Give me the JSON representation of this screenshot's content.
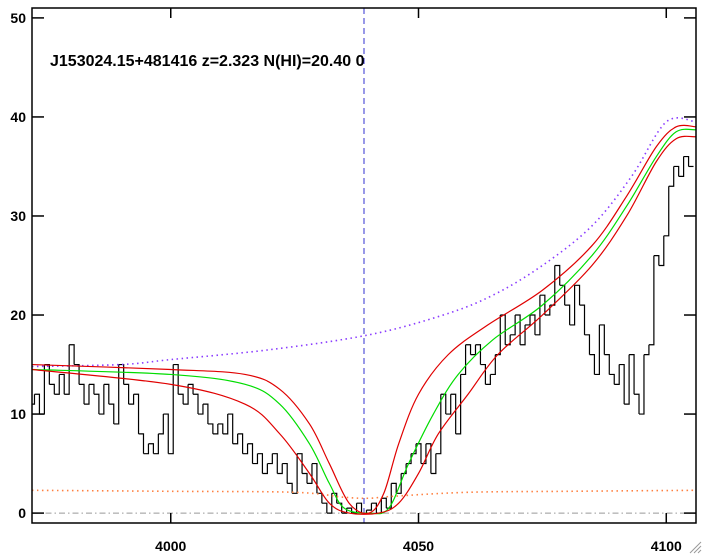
{
  "chart_data": {
    "type": "line",
    "annotation": "J153024.15+481416 z=2.323 N(HI)=20.40 0",
    "xlim": [
      3972,
      4106
    ],
    "ylim": [
      -1,
      51
    ],
    "xticks": [
      4000,
      4050,
      4100
    ],
    "yticks": [
      0,
      10,
      20,
      30,
      40,
      50
    ],
    "vline": {
      "x": 4039,
      "color": "#3030d0"
    },
    "hline": {
      "value": 0,
      "color": "#999999"
    },
    "series": [
      {
        "style": "steps",
        "color": "#000000",
        "x": [
          3972,
          3973,
          3974,
          3975,
          3976,
          3977,
          3978,
          3979,
          3980,
          3981,
          3982,
          3983,
          3984,
          3985,
          3986,
          3987,
          3988,
          3989,
          3990,
          3991,
          3992,
          3993,
          3994,
          3995,
          3996,
          3997,
          3998,
          3999,
          4000,
          4001,
          4002,
          4003,
          4004,
          4005,
          4006,
          4007,
          4008,
          4009,
          4010,
          4011,
          4012,
          4013,
          4014,
          4015,
          4016,
          4017,
          4018,
          4019,
          4020,
          4021,
          4022,
          4023,
          4024,
          4025,
          4026,
          4027,
          4028,
          4029,
          4030,
          4031,
          4032,
          4033,
          4034,
          4035,
          4036,
          4037,
          4038,
          4039,
          4040,
          4041,
          4042,
          4043,
          4044,
          4045,
          4046,
          4047,
          4048,
          4049,
          4050,
          4051,
          4052,
          4053,
          4054,
          4055,
          4056,
          4057,
          4058,
          4059,
          4060,
          4061,
          4062,
          4063,
          4064,
          4065,
          4066,
          4067,
          4068,
          4069,
          4070,
          4071,
          4072,
          4073,
          4074,
          4075,
          4076,
          4077,
          4078,
          4079,
          4080,
          4081,
          4082,
          4083,
          4084,
          4085,
          4086,
          4087,
          4088,
          4089,
          4090,
          4091,
          4092,
          4093,
          4094,
          4095,
          4096,
          4097,
          4098,
          4099,
          4100,
          4101,
          4102,
          4103,
          4104,
          4105
        ],
        "values": [
          11,
          12,
          10,
          15,
          13,
          12,
          14,
          12,
          17,
          15,
          13,
          11,
          13,
          12,
          10,
          13,
          11,
          9,
          15,
          13,
          11,
          12,
          8,
          6,
          7,
          6,
          8,
          10,
          6,
          15,
          12,
          11,
          13,
          12,
          10,
          11,
          9,
          8,
          9,
          8,
          10,
          7,
          8,
          6,
          7,
          5,
          6,
          4,
          5,
          6,
          4,
          5,
          3,
          2,
          6,
          4,
          3,
          5,
          2,
          1,
          0,
          2,
          1,
          0,
          0.5,
          0,
          1,
          0,
          0.3,
          1,
          0,
          1.5,
          0.5,
          3,
          2,
          4,
          5,
          6,
          7,
          5,
          7,
          4,
          6,
          12,
          10,
          12,
          8,
          14,
          17,
          16,
          17,
          15,
          13,
          14,
          16,
          20,
          17,
          18,
          20,
          17,
          19,
          20,
          18,
          22,
          20,
          21,
          25,
          23,
          21,
          19,
          23,
          21,
          18,
          16,
          14,
          19,
          16,
          14,
          13,
          15,
          11,
          16,
          12,
          10,
          16,
          17,
          26,
          25,
          28,
          33,
          35,
          34,
          36,
          35
        ]
      },
      {
        "style": "dotted",
        "color": "#8a3cff",
        "x": [
          3972,
          3990,
          4000,
          4020,
          4040,
          4055,
          4065,
          4075,
          4085,
          4093,
          4100,
          4106
        ],
        "values": [
          14.8,
          15,
          15.5,
          16.5,
          18,
          20,
          22,
          25,
          29,
          34,
          39.5,
          39.5
        ]
      },
      {
        "style": "dotted",
        "color": "#ff8040",
        "x": [
          3972,
          4000,
          4025,
          4035,
          4040,
          4045,
          4060,
          4080,
          4106
        ],
        "values": [
          2.3,
          2.2,
          2.1,
          1.6,
          1.5,
          1.7,
          2.1,
          2.2,
          2.3
        ]
      },
      {
        "style": "solid",
        "color": "#00dd00",
        "x": [
          3972,
          4000,
          4015,
          4022,
          4028,
          4032,
          4035,
          4040,
          4044,
          4048,
          4053,
          4058,
          4065,
          4075,
          4085,
          4092,
          4098,
          4102,
          4106
        ],
        "values": [
          14.5,
          14,
          13,
          11,
          7,
          3,
          0.5,
          0,
          0.5,
          5,
          10,
          14,
          17.5,
          21,
          26,
          31,
          36,
          38.5,
          38.7
        ]
      },
      {
        "style": "solid",
        "color": "#e00000",
        "x": [
          3972,
          4000,
          4015,
          4022,
          4028,
          4032,
          4036,
          4040,
          4043,
          4046,
          4050,
          4056,
          4064,
          4075,
          4085,
          4092,
          4098,
          4102,
          4106
        ],
        "values": [
          15,
          14.5,
          14,
          12.5,
          9,
          5,
          1,
          0,
          2,
          7,
          12,
          16,
          19,
          22.5,
          27,
          32,
          37,
          39,
          39
        ]
      },
      {
        "style": "solid",
        "color": "#e00000",
        "x": [
          3972,
          4000,
          4015,
          4022,
          4028,
          4032,
          4036,
          4042,
          4046,
          4050,
          4054,
          4060,
          4066,
          4075,
          4085,
          4092,
          4098,
          4102,
          4106
        ],
        "values": [
          14.5,
          13,
          11,
          8,
          4,
          1,
          0,
          0,
          1,
          4,
          8,
          12,
          16,
          20,
          25,
          30,
          35.5,
          37.8,
          38
        ]
      }
    ]
  }
}
